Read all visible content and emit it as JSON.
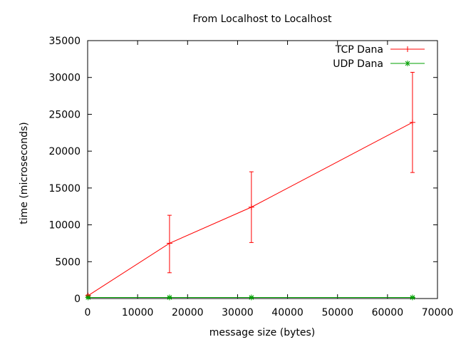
{
  "chart_data": {
    "type": "line",
    "title": "From Localhost to Localhost",
    "xlabel": "message size (bytes)",
    "ylabel": "time (microseconds)",
    "xlim": [
      0,
      70000
    ],
    "ylim": [
      0,
      35000
    ],
    "xticks": [
      0,
      10000,
      20000,
      30000,
      40000,
      50000,
      60000,
      70000
    ],
    "yticks": [
      0,
      5000,
      10000,
      15000,
      20000,
      25000,
      30000,
      35000
    ],
    "grid": false,
    "legend_position": "top-right",
    "series": [
      {
        "name": "TCP Dana",
        "color": "#ff0000",
        "marker": "plus",
        "points": [
          {
            "x": 100,
            "y": 400,
            "low": 300,
            "high": 500
          },
          {
            "x": 16384,
            "y": 7500,
            "low": 3500,
            "high": 11300
          },
          {
            "x": 32768,
            "y": 12400,
            "low": 7600,
            "high": 17200
          },
          {
            "x": 65000,
            "y": 23900,
            "low": 17100,
            "high": 30700
          }
        ]
      },
      {
        "name": "UDP Dana",
        "color": "#00a000",
        "marker": "star",
        "points": [
          {
            "x": 100,
            "y": 150,
            "low": 80,
            "high": 220
          },
          {
            "x": 16384,
            "y": 150,
            "low": 80,
            "high": 220
          },
          {
            "x": 32768,
            "y": 150,
            "low": 80,
            "high": 220
          },
          {
            "x": 65000,
            "y": 150,
            "low": 80,
            "high": 220
          }
        ]
      }
    ]
  }
}
